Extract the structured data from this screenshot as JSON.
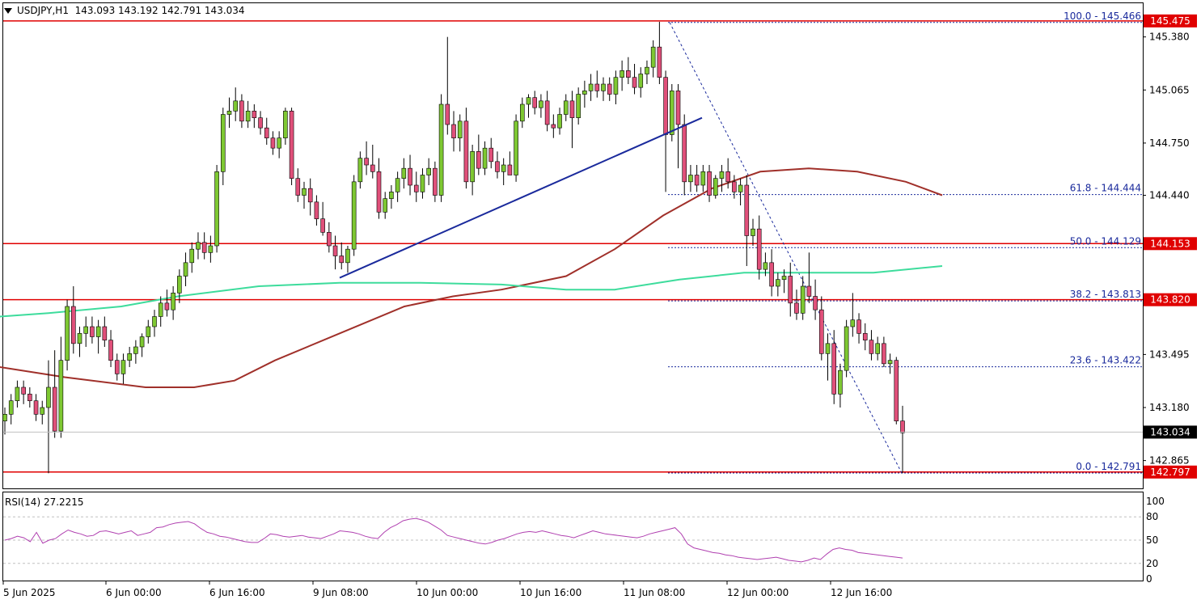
{
  "header": {
    "symbol": "USDJPY,H1",
    "ohlc": "143.093 143.192 142.791 143.034"
  },
  "colors": {
    "bull": "#7ec832",
    "bear": "#e0507a",
    "ma_short": "#3ddc9c",
    "ma_long": "#a0302a",
    "trendline": "#1a2a9c",
    "hline": "#e00000",
    "fib": "#1a2a9c",
    "rsi": "#b040b0"
  },
  "price_axis": {
    "ticks": [
      "145.380",
      "145.065",
      "144.750",
      "144.440",
      "143.495",
      "143.180",
      "142.865"
    ],
    "range": [
      142.7,
      145.58
    ],
    "current_price": "143.034"
  },
  "horizontal_levels": [
    "145.475",
    "144.153",
    "143.820",
    "142.797"
  ],
  "fib_levels": [
    {
      "label": "100.0 - 145.466",
      "price": 145.466
    },
    {
      "label": "61.8 - 144.444",
      "price": 144.444
    },
    {
      "label": "50.0 - 144.129",
      "price": 144.129
    },
    {
      "label": "38.2 - 143.813",
      "price": 143.813
    },
    {
      "label": "23.6 - 143.422",
      "price": 143.422
    },
    {
      "label": "0.0 - 142.791",
      "price": 142.791
    }
  ],
  "time_axis": [
    "5 Jun 2025",
    "6 Jun 00:00",
    "6 Jun 16:00",
    "9 Jun 08:00",
    "10 Jun 00:00",
    "10 Jun 16:00",
    "11 Jun 08:00",
    "12 Jun 00:00",
    "12 Jun 16:00"
  ],
  "rsi": {
    "label": "RSI(14) 27.2215",
    "ticks": [
      "100",
      "80",
      "50",
      "20",
      "0"
    ],
    "values": [
      50,
      52,
      55,
      53,
      48,
      60,
      46,
      50,
      52,
      58,
      63,
      60,
      58,
      55,
      56,
      61,
      62,
      60,
      58,
      60,
      62,
      56,
      58,
      60,
      66,
      67,
      70,
      72,
      73,
      74,
      71,
      65,
      60,
      58,
      55,
      54,
      52,
      50,
      48,
      47,
      47,
      52,
      58,
      57,
      55,
      54,
      55,
      56,
      54,
      53,
      52,
      55,
      58,
      62,
      61,
      60,
      58,
      55,
      53,
      52,
      60,
      66,
      70,
      75,
      77,
      78,
      76,
      73,
      68,
      63,
      56,
      54,
      52,
      50,
      48,
      46,
      45,
      47,
      50,
      52,
      55,
      58,
      60,
      61,
      60,
      62,
      60,
      58,
      56,
      55,
      53,
      56,
      59,
      62,
      60,
      58,
      57,
      56,
      55,
      54,
      53,
      55,
      58,
      60,
      62,
      64,
      66,
      58,
      45,
      40,
      38,
      36,
      34,
      33,
      31,
      30,
      28,
      27,
      26,
      25,
      26,
      27,
      28,
      26,
      24,
      23,
      22,
      24,
      27,
      25,
      32,
      38,
      40,
      38,
      37,
      34,
      33,
      32,
      31,
      30,
      29,
      28,
      27
    ]
  },
  "chart_data": {
    "type": "candlestick",
    "title": "USDJPY,H1",
    "ylim": [
      142.7,
      145.58
    ],
    "candles_ohlc": [
      [
        143.1,
        143.18,
        143.02,
        143.14
      ],
      [
        143.14,
        143.26,
        143.08,
        143.22
      ],
      [
        143.22,
        143.34,
        143.18,
        143.3
      ],
      [
        143.3,
        143.34,
        143.2,
        143.26
      ],
      [
        143.26,
        143.3,
        143.18,
        143.22
      ],
      [
        143.22,
        143.26,
        143.1,
        143.14
      ],
      [
        143.14,
        143.22,
        143.08,
        143.18
      ],
      [
        143.18,
        143.46,
        142.79,
        143.3
      ],
      [
        143.3,
        143.52,
        143.0,
        143.04
      ],
      [
        143.04,
        143.6,
        143.0,
        143.46
      ],
      [
        143.46,
        143.82,
        143.4,
        143.78
      ],
      [
        143.78,
        143.9,
        143.5,
        143.56
      ],
      [
        143.56,
        143.66,
        143.48,
        143.62
      ],
      [
        143.62,
        143.72,
        143.54,
        143.66
      ],
      [
        143.66,
        143.72,
        143.56,
        143.6
      ],
      [
        143.6,
        143.7,
        143.5,
        143.66
      ],
      [
        143.66,
        143.72,
        143.54,
        143.58
      ],
      [
        143.58,
        143.64,
        143.42,
        143.46
      ],
      [
        143.46,
        143.5,
        143.34,
        143.38
      ],
      [
        143.38,
        143.5,
        143.32,
        143.46
      ],
      [
        143.46,
        143.54,
        143.42,
        143.5
      ],
      [
        143.5,
        143.58,
        143.44,
        143.54
      ],
      [
        143.54,
        143.62,
        143.48,
        143.6
      ],
      [
        143.6,
        143.7,
        143.56,
        143.66
      ],
      [
        143.66,
        143.76,
        143.6,
        143.72
      ],
      [
        143.72,
        143.84,
        143.66,
        143.8
      ],
      [
        143.8,
        143.88,
        143.72,
        143.76
      ],
      [
        143.76,
        143.9,
        143.7,
        143.86
      ],
      [
        143.86,
        144.0,
        143.8,
        143.96
      ],
      [
        143.96,
        144.1,
        143.9,
        144.04
      ],
      [
        144.04,
        144.16,
        143.98,
        144.12
      ],
      [
        144.12,
        144.22,
        144.06,
        144.16
      ],
      [
        144.16,
        144.22,
        144.06,
        144.1
      ],
      [
        144.1,
        144.2,
        144.04,
        144.14
      ],
      [
        144.14,
        144.62,
        144.1,
        144.58
      ],
      [
        144.58,
        144.96,
        144.5,
        144.92
      ],
      [
        144.92,
        145.02,
        144.84,
        144.94
      ],
      [
        144.94,
        145.08,
        144.88,
        145.0
      ],
      [
        145.0,
        145.04,
        144.84,
        144.88
      ],
      [
        144.88,
        145.0,
        144.84,
        144.94
      ],
      [
        144.94,
        144.98,
        144.84,
        144.9
      ],
      [
        144.9,
        144.94,
        144.8,
        144.84
      ],
      [
        144.84,
        144.9,
        144.74,
        144.78
      ],
      [
        144.78,
        144.82,
        144.68,
        144.72
      ],
      [
        144.72,
        144.82,
        144.66,
        144.78
      ],
      [
        144.78,
        144.96,
        144.74,
        144.94
      ],
      [
        144.94,
        144.96,
        144.5,
        144.54
      ],
      [
        144.54,
        144.6,
        144.4,
        144.44
      ],
      [
        144.44,
        144.52,
        144.36,
        144.48
      ],
      [
        144.48,
        144.54,
        144.32,
        144.4
      ],
      [
        144.4,
        144.44,
        144.26,
        144.3
      ],
      [
        144.3,
        144.4,
        144.2,
        144.22
      ],
      [
        144.22,
        144.28,
        144.1,
        144.14
      ],
      [
        144.14,
        144.2,
        144.0,
        144.08
      ],
      [
        144.08,
        144.16,
        144.0,
        144.04
      ],
      [
        144.04,
        144.14,
        143.98,
        144.12
      ],
      [
        144.12,
        144.56,
        144.08,
        144.52
      ],
      [
        144.52,
        144.7,
        144.48,
        144.66
      ],
      [
        144.66,
        144.76,
        144.56,
        144.62
      ],
      [
        144.62,
        144.74,
        144.54,
        144.58
      ],
      [
        144.58,
        144.66,
        144.3,
        144.34
      ],
      [
        144.34,
        144.46,
        144.3,
        144.42
      ],
      [
        144.42,
        144.5,
        144.36,
        144.46
      ],
      [
        144.46,
        144.58,
        144.4,
        144.54
      ],
      [
        144.54,
        144.66,
        144.48,
        144.6
      ],
      [
        144.6,
        144.68,
        144.44,
        144.5
      ],
      [
        144.5,
        144.58,
        144.4,
        144.46
      ],
      [
        144.46,
        144.6,
        144.42,
        144.56
      ],
      [
        144.56,
        144.66,
        144.5,
        144.6
      ],
      [
        144.6,
        144.64,
        144.4,
        144.44
      ],
      [
        144.44,
        145.04,
        144.4,
        144.98
      ],
      [
        144.98,
        145.38,
        144.8,
        144.86
      ],
      [
        144.86,
        144.94,
        144.7,
        144.78
      ],
      [
        144.78,
        144.92,
        144.7,
        144.88
      ],
      [
        144.88,
        144.96,
        144.48,
        144.52
      ],
      [
        144.52,
        144.74,
        144.44,
        144.7
      ],
      [
        144.7,
        144.8,
        144.56,
        144.6
      ],
      [
        144.6,
        144.76,
        144.56,
        144.72
      ],
      [
        144.72,
        144.78,
        144.6,
        144.64
      ],
      [
        144.64,
        144.7,
        144.54,
        144.58
      ],
      [
        144.58,
        144.66,
        144.5,
        144.62
      ],
      [
        144.62,
        144.7,
        144.56,
        144.56
      ],
      [
        144.56,
        144.92,
        144.52,
        144.88
      ],
      [
        144.88,
        145.02,
        144.84,
        144.98
      ],
      [
        144.98,
        145.04,
        144.9,
        145.02
      ],
      [
        145.02,
        145.06,
        144.92,
        144.96
      ],
      [
        144.96,
        145.04,
        144.9,
        145.0
      ],
      [
        145.0,
        145.06,
        144.82,
        144.86
      ],
      [
        144.86,
        144.92,
        144.78,
        144.84
      ],
      [
        144.84,
        144.96,
        144.8,
        144.92
      ],
      [
        144.92,
        145.04,
        144.88,
        145.0
      ],
      [
        145.0,
        145.06,
        144.72,
        144.9
      ],
      [
        144.9,
        145.08,
        144.86,
        145.04
      ],
      [
        145.04,
        145.12,
        144.96,
        145.06
      ],
      [
        145.06,
        145.16,
        145.0,
        145.1
      ],
      [
        145.1,
        145.18,
        145.02,
        145.06
      ],
      [
        145.06,
        145.14,
        145.0,
        145.1
      ],
      [
        145.1,
        145.14,
        145.0,
        145.04
      ],
      [
        145.04,
        145.18,
        144.98,
        145.14
      ],
      [
        145.14,
        145.24,
        145.06,
        145.18
      ],
      [
        145.18,
        145.26,
        145.1,
        145.14
      ],
      [
        145.14,
        145.22,
        145.04,
        145.08
      ],
      [
        145.08,
        145.2,
        145.02,
        145.16
      ],
      [
        145.16,
        145.24,
        145.1,
        145.2
      ],
      [
        145.2,
        145.36,
        145.14,
        145.32
      ],
      [
        145.32,
        145.47,
        145.1,
        145.14
      ],
      [
        145.14,
        145.18,
        144.46,
        144.8
      ],
      [
        144.8,
        145.1,
        144.76,
        145.06
      ],
      [
        145.06,
        145.1,
        144.6,
        144.86
      ],
      [
        144.86,
        144.92,
        144.44,
        144.52
      ],
      [
        144.52,
        144.62,
        144.46,
        144.56
      ],
      [
        144.56,
        144.62,
        144.46,
        144.5
      ],
      [
        144.5,
        144.62,
        144.46,
        144.58
      ],
      [
        144.58,
        144.62,
        144.4,
        144.44
      ],
      [
        144.44,
        144.56,
        144.42,
        144.54
      ],
      [
        144.54,
        144.62,
        144.46,
        144.58
      ],
      [
        144.58,
        144.66,
        144.48,
        144.52
      ],
      [
        144.52,
        144.56,
        144.42,
        144.46
      ],
      [
        144.46,
        144.54,
        144.38,
        144.5
      ],
      [
        144.5,
        144.56,
        144.02,
        144.2
      ],
      [
        144.2,
        144.3,
        144.14,
        144.24
      ],
      [
        144.24,
        144.32,
        143.94,
        144.0
      ],
      [
        144.0,
        144.1,
        143.96,
        144.04
      ],
      [
        144.04,
        144.12,
        143.84,
        143.9
      ],
      [
        143.9,
        143.98,
        143.84,
        143.94
      ],
      [
        143.94,
        144.0,
        143.86,
        143.96
      ],
      [
        143.96,
        144.04,
        143.72,
        143.8
      ],
      [
        143.8,
        143.88,
        143.7,
        143.74
      ],
      [
        143.74,
        143.96,
        143.7,
        143.9
      ],
      [
        143.9,
        144.1,
        143.8,
        143.84
      ],
      [
        143.84,
        143.94,
        143.7,
        143.76
      ],
      [
        143.76,
        143.84,
        143.46,
        143.5
      ],
      [
        143.5,
        143.62,
        143.34,
        143.56
      ],
      [
        143.56,
        143.64,
        143.2,
        143.26
      ],
      [
        143.26,
        143.44,
        143.18,
        143.4
      ],
      [
        143.4,
        143.7,
        143.36,
        143.66
      ],
      [
        143.66,
        143.86,
        143.6,
        143.7
      ],
      [
        143.7,
        143.74,
        143.56,
        143.62
      ],
      [
        143.62,
        143.68,
        143.52,
        143.58
      ],
      [
        143.58,
        143.64,
        143.46,
        143.5
      ],
      [
        143.5,
        143.6,
        143.46,
        143.56
      ],
      [
        143.56,
        143.6,
        143.42,
        143.44
      ],
      [
        143.44,
        143.5,
        143.38,
        143.46
      ],
      [
        143.46,
        143.48,
        143.08,
        143.1
      ],
      [
        143.1,
        143.19,
        142.79,
        143.03
      ]
    ],
    "ma_short_points": [
      [
        0,
        143.72
      ],
      [
        60,
        143.74
      ],
      [
        150,
        143.78
      ],
      [
        220,
        143.84
      ],
      [
        320,
        143.9
      ],
      [
        420,
        143.92
      ],
      [
        520,
        143.92
      ],
      [
        620,
        143.91
      ],
      [
        700,
        143.88
      ],
      [
        760,
        143.88
      ],
      [
        840,
        143.94
      ],
      [
        920,
        143.98
      ],
      [
        1000,
        143.98
      ],
      [
        1080,
        143.98
      ],
      [
        1165,
        144.02
      ]
    ],
    "ma_long_points": [
      [
        0,
        143.42
      ],
      [
        80,
        143.36
      ],
      [
        180,
        143.3
      ],
      [
        240,
        143.3
      ],
      [
        290,
        143.34
      ],
      [
        340,
        143.46
      ],
      [
        420,
        143.62
      ],
      [
        500,
        143.78
      ],
      [
        560,
        143.84
      ],
      [
        620,
        143.88
      ],
      [
        700,
        143.96
      ],
      [
        760,
        144.12
      ],
      [
        820,
        144.32
      ],
      [
        880,
        144.48
      ],
      [
        940,
        144.58
      ],
      [
        1000,
        144.6
      ],
      [
        1060,
        144.58
      ],
      [
        1120,
        144.52
      ],
      [
        1165,
        144.44
      ]
    ],
    "trendline": [
      [
        420,
        143.95
      ],
      [
        868,
        144.9
      ]
    ]
  }
}
